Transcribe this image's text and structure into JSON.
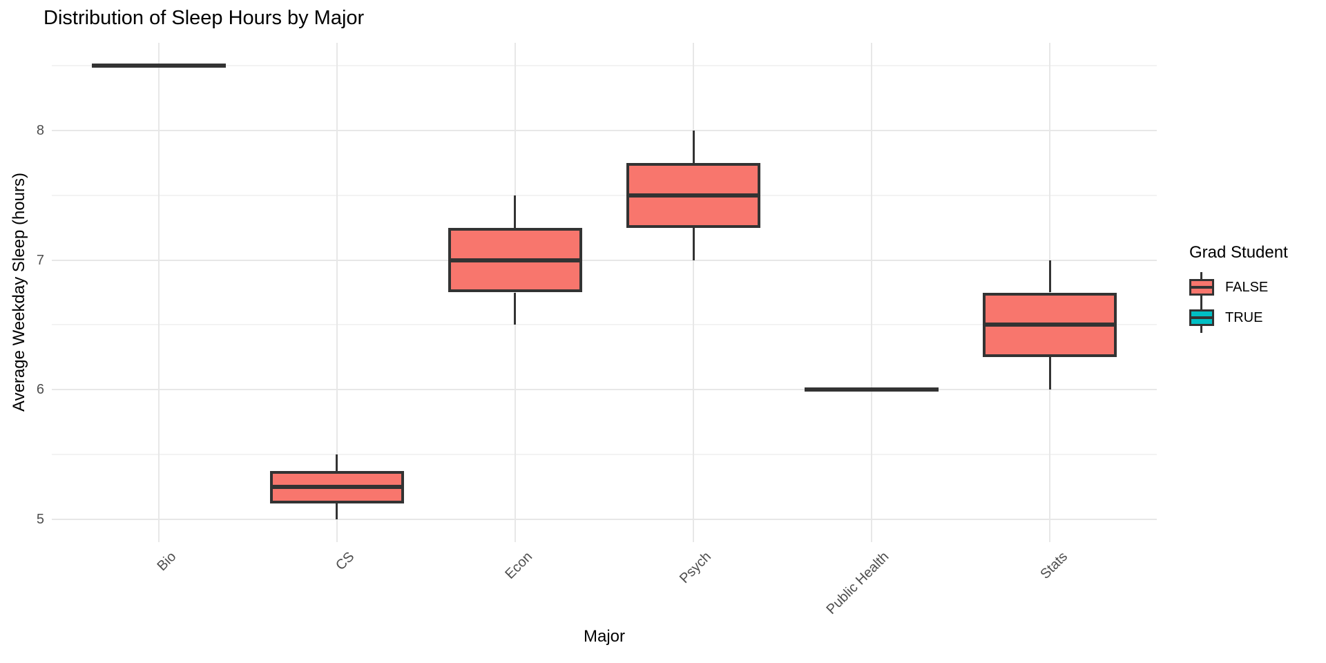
{
  "title": "Distribution of Sleep Hours by Major",
  "axes": {
    "x_title": "Major",
    "y_title": "Average Weekday Sleep (hours)",
    "y_tick_labels": [
      "5",
      "6",
      "7",
      "8"
    ]
  },
  "legend": {
    "title": "Grad Student",
    "items": [
      {
        "label": "FALSE",
        "color": "#F8766D"
      },
      {
        "label": "TRUE",
        "color": "#00BFC4"
      }
    ]
  },
  "colors": {
    "box_fill_false": "#F8766D",
    "box_fill_true": "#00BFC4",
    "box_border": "#333333",
    "grid_major": "#E7E7E7",
    "grid_minor": "#F3F3F3",
    "axis_text": "#4D4D4D",
    "title_text": "#000000"
  },
  "chart_data": {
    "type": "boxplot",
    "title": "Distribution of Sleep Hours by Major",
    "xlabel": "Major",
    "ylabel": "Average Weekday Sleep (hours)",
    "categories": [
      "Bio",
      "CS",
      "Econ",
      "Psych",
      "Public Health",
      "Stats"
    ],
    "series": [
      {
        "category": "Bio",
        "group": "FALSE",
        "min": 8.5,
        "q1": 8.5,
        "median": 8.5,
        "q3": 8.5,
        "max": 8.5,
        "flat": true
      },
      {
        "category": "CS",
        "group": "FALSE",
        "min": 5.0,
        "q1": 5.125,
        "median": 5.25,
        "q3": 5.375,
        "max": 5.5,
        "flat": false
      },
      {
        "category": "Econ",
        "group": "FALSE",
        "min": 6.5,
        "q1": 6.75,
        "median": 7.0,
        "q3": 7.25,
        "max": 7.5,
        "flat": false
      },
      {
        "category": "Psych",
        "group": "FALSE",
        "min": 7.0,
        "q1": 7.25,
        "median": 7.5,
        "q3": 7.75,
        "max": 8.0,
        "flat": false
      },
      {
        "category": "Public Health",
        "group": "FALSE",
        "min": 6.0,
        "q1": 6.0,
        "median": 6.0,
        "q3": 6.0,
        "max": 6.0,
        "flat": true
      },
      {
        "category": "Stats",
        "group": "FALSE",
        "min": 6.0,
        "q1": 6.25,
        "median": 6.5,
        "q3": 6.75,
        "max": 7.0,
        "flat": false
      }
    ],
    "ylim": [
      4.825,
      8.675
    ],
    "y_major_grid": [
      5,
      6,
      7,
      8
    ],
    "y_minor_grid": [
      5.5,
      6.5,
      7.5,
      8.5
    ],
    "grid": true,
    "legend_position": "right",
    "legend_title": "Grad Student"
  }
}
